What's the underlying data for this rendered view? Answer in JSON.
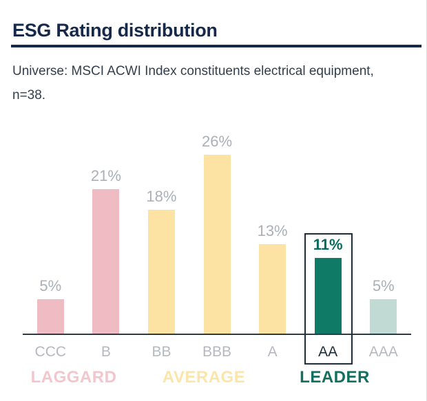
{
  "header": {
    "title": "ESG Rating distribution",
    "subtitle_line1": "Universe: MSCI ACWI Index constituents electrical equipment,",
    "subtitle_line2": "n=38."
  },
  "chart_data": {
    "type": "bar",
    "title": "ESG Rating distribution",
    "subtitle": "Universe: MSCI ACWI Index constituents electrical equipment, n=38.",
    "categories": [
      "CCC",
      "B",
      "BB",
      "BBB",
      "A",
      "AA",
      "AAA"
    ],
    "values": [
      5,
      21,
      18,
      26,
      13,
      11,
      5
    ],
    "xlabel": "",
    "ylabel": "",
    "ylim": [
      0,
      29
    ],
    "grid": false,
    "legend_position": "none",
    "highlighted_category": "AA",
    "bars": [
      {
        "category": "CCC",
        "value": 5,
        "value_label": "5%",
        "bar_color": "#f0bcc3",
        "value_color": "#abb0b6",
        "value_bold": false,
        "category_color": "#b5b9bf"
      },
      {
        "category": "B",
        "value": 21,
        "value_label": "21%",
        "bar_color": "#f0bcc3",
        "value_color": "#abb0b6",
        "value_bold": false,
        "category_color": "#b5b9bf"
      },
      {
        "category": "BB",
        "value": 18,
        "value_label": "18%",
        "bar_color": "#fce3a3",
        "value_color": "#abb0b6",
        "value_bold": false,
        "category_color": "#b5b9bf"
      },
      {
        "category": "BBB",
        "value": 26,
        "value_label": "26%",
        "bar_color": "#fce3a3",
        "value_color": "#abb0b6",
        "value_bold": false,
        "category_color": "#b5b9bf"
      },
      {
        "category": "A",
        "value": 13,
        "value_label": "13%",
        "bar_color": "#fce3a3",
        "value_color": "#abb0b6",
        "value_bold": false,
        "category_color": "#b5b9bf"
      },
      {
        "category": "AA",
        "value": 11,
        "value_label": "11%",
        "bar_color": "#0f7b67",
        "value_color": "#0b6b5b",
        "value_bold": true,
        "category_color": "#1f2d3b"
      },
      {
        "category": "AAA",
        "value": 5,
        "value_label": "5%",
        "bar_color": "#c1dad3",
        "value_color": "#abb0b6",
        "value_bold": false,
        "category_color": "#b5b9bf"
      }
    ],
    "groups": [
      {
        "label": "LAGGARD",
        "categories": [
          "CCC",
          "B"
        ],
        "color": "#f3c6cd"
      },
      {
        "label": "AVERAGE",
        "categories": [
          "BB",
          "BBB",
          "A"
        ],
        "color": "#fce5a9"
      },
      {
        "label": "LEADER",
        "categories": [
          "AA",
          "AAA"
        ],
        "color": "#127060"
      }
    ]
  },
  "colors": {
    "title_navy": "#16294a",
    "subtitle_text": "#333f4c",
    "axis": "#2c3947",
    "highlight_box_border": "#1f2d3b",
    "laggard_pink": "#f0bcc3",
    "average_yellow": "#fce3a3",
    "leader_teal": "#0f7b67",
    "leader_light_teal": "#c1dad3"
  }
}
